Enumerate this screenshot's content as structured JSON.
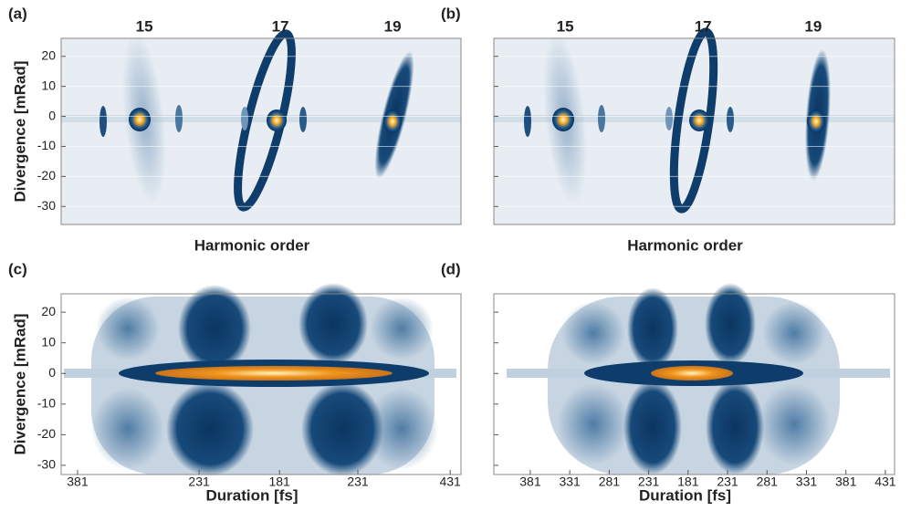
{
  "chart_data": [
    {
      "type": "heatmap",
      "panel_label": "(a)",
      "annotations": [
        "15",
        "17",
        "19"
      ],
      "xlabel": "Harmonic order",
      "ylabel": "Divergence [mRad]",
      "ylim": [
        -36,
        26
      ],
      "yticks": [
        -30,
        -20,
        -10,
        0,
        10,
        20
      ],
      "ytick_labels": true,
      "grid": true
    },
    {
      "type": "heatmap",
      "panel_label": "(b)",
      "annotations": [
        "15",
        "17",
        "19"
      ],
      "xlabel": "Harmonic order",
      "ylim": [
        -36,
        26
      ],
      "yticks": [
        -30,
        -20,
        -10,
        0,
        10,
        20
      ],
      "ytick_labels": false,
      "grid": true
    },
    {
      "type": "heatmap",
      "panel_label": "(c)",
      "xlabel": "Duration [fs]",
      "ylabel": "Divergence [mRad]",
      "categories": [
        "381",
        "231",
        "181",
        "231",
        "431"
      ],
      "ylim": [
        -33,
        26
      ],
      "yticks": [
        -30,
        -20,
        -10,
        0,
        10,
        20
      ],
      "ytick_labels": true,
      "grid": false
    },
    {
      "type": "heatmap",
      "panel_label": "(d)",
      "xlabel": "Duration [fs]",
      "categories": [
        "381",
        "331",
        "281",
        "231",
        "181",
        "231",
        "281",
        "331",
        "381",
        "431"
      ],
      "ylim": [
        -33,
        26
      ],
      "yticks": [
        -30,
        -20,
        -10,
        0,
        10,
        20
      ],
      "ytick_labels": false,
      "grid": false
    }
  ]
}
